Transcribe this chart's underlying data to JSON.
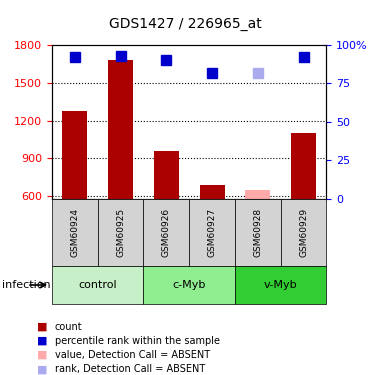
{
  "title": "GDS1427 / 226965_at",
  "samples": [
    "GSM60924",
    "GSM60925",
    "GSM60926",
    "GSM60927",
    "GSM60928",
    "GSM60929"
  ],
  "groups": [
    {
      "name": "control",
      "samples": [
        "GSM60924",
        "GSM60925"
      ],
      "color": "#c8f0c8"
    },
    {
      "name": "c-Myb",
      "samples": [
        "GSM60926",
        "GSM60927"
      ],
      "color": "#90ee90"
    },
    {
      "name": "v-Myb",
      "samples": [
        "GSM60928",
        "GSM60929"
      ],
      "color": "#32cd32"
    }
  ],
  "bar_values": [
    1280,
    1680,
    960,
    690,
    650,
    1100
  ],
  "bar_colors": [
    "#aa0000",
    "#aa0000",
    "#aa0000",
    "#aa0000",
    "#ffaaaa",
    "#aa0000"
  ],
  "rank_values": [
    92,
    93,
    90,
    82,
    82,
    92
  ],
  "rank_colors": [
    "#0000cc",
    "#0000cc",
    "#0000cc",
    "#0000cc",
    "#aaaaee",
    "#0000cc"
  ],
  "ylim_left": [
    580,
    1800
  ],
  "ylim_right": [
    0,
    100
  ],
  "yticks_left": [
    600,
    900,
    1200,
    1500,
    1800
  ],
  "yticks_right": [
    0,
    25,
    50,
    75,
    100
  ],
  "ylabel_right_labels": [
    "0",
    "25",
    "50",
    "75",
    "100%"
  ],
  "legend_items": [
    {
      "label": "count",
      "color": "#aa0000"
    },
    {
      "label": "percentile rank within the sample",
      "color": "#0000cc"
    },
    {
      "label": "value, Detection Call = ABSENT",
      "color": "#ffaaaa"
    },
    {
      "label": "rank, Detection Call = ABSENT",
      "color": "#aaaaee"
    }
  ],
  "infection_label": "infection",
  "background_color": "#ffffff",
  "plot_bg_color": "#ffffff",
  "sample_bg_color": "#d3d3d3"
}
